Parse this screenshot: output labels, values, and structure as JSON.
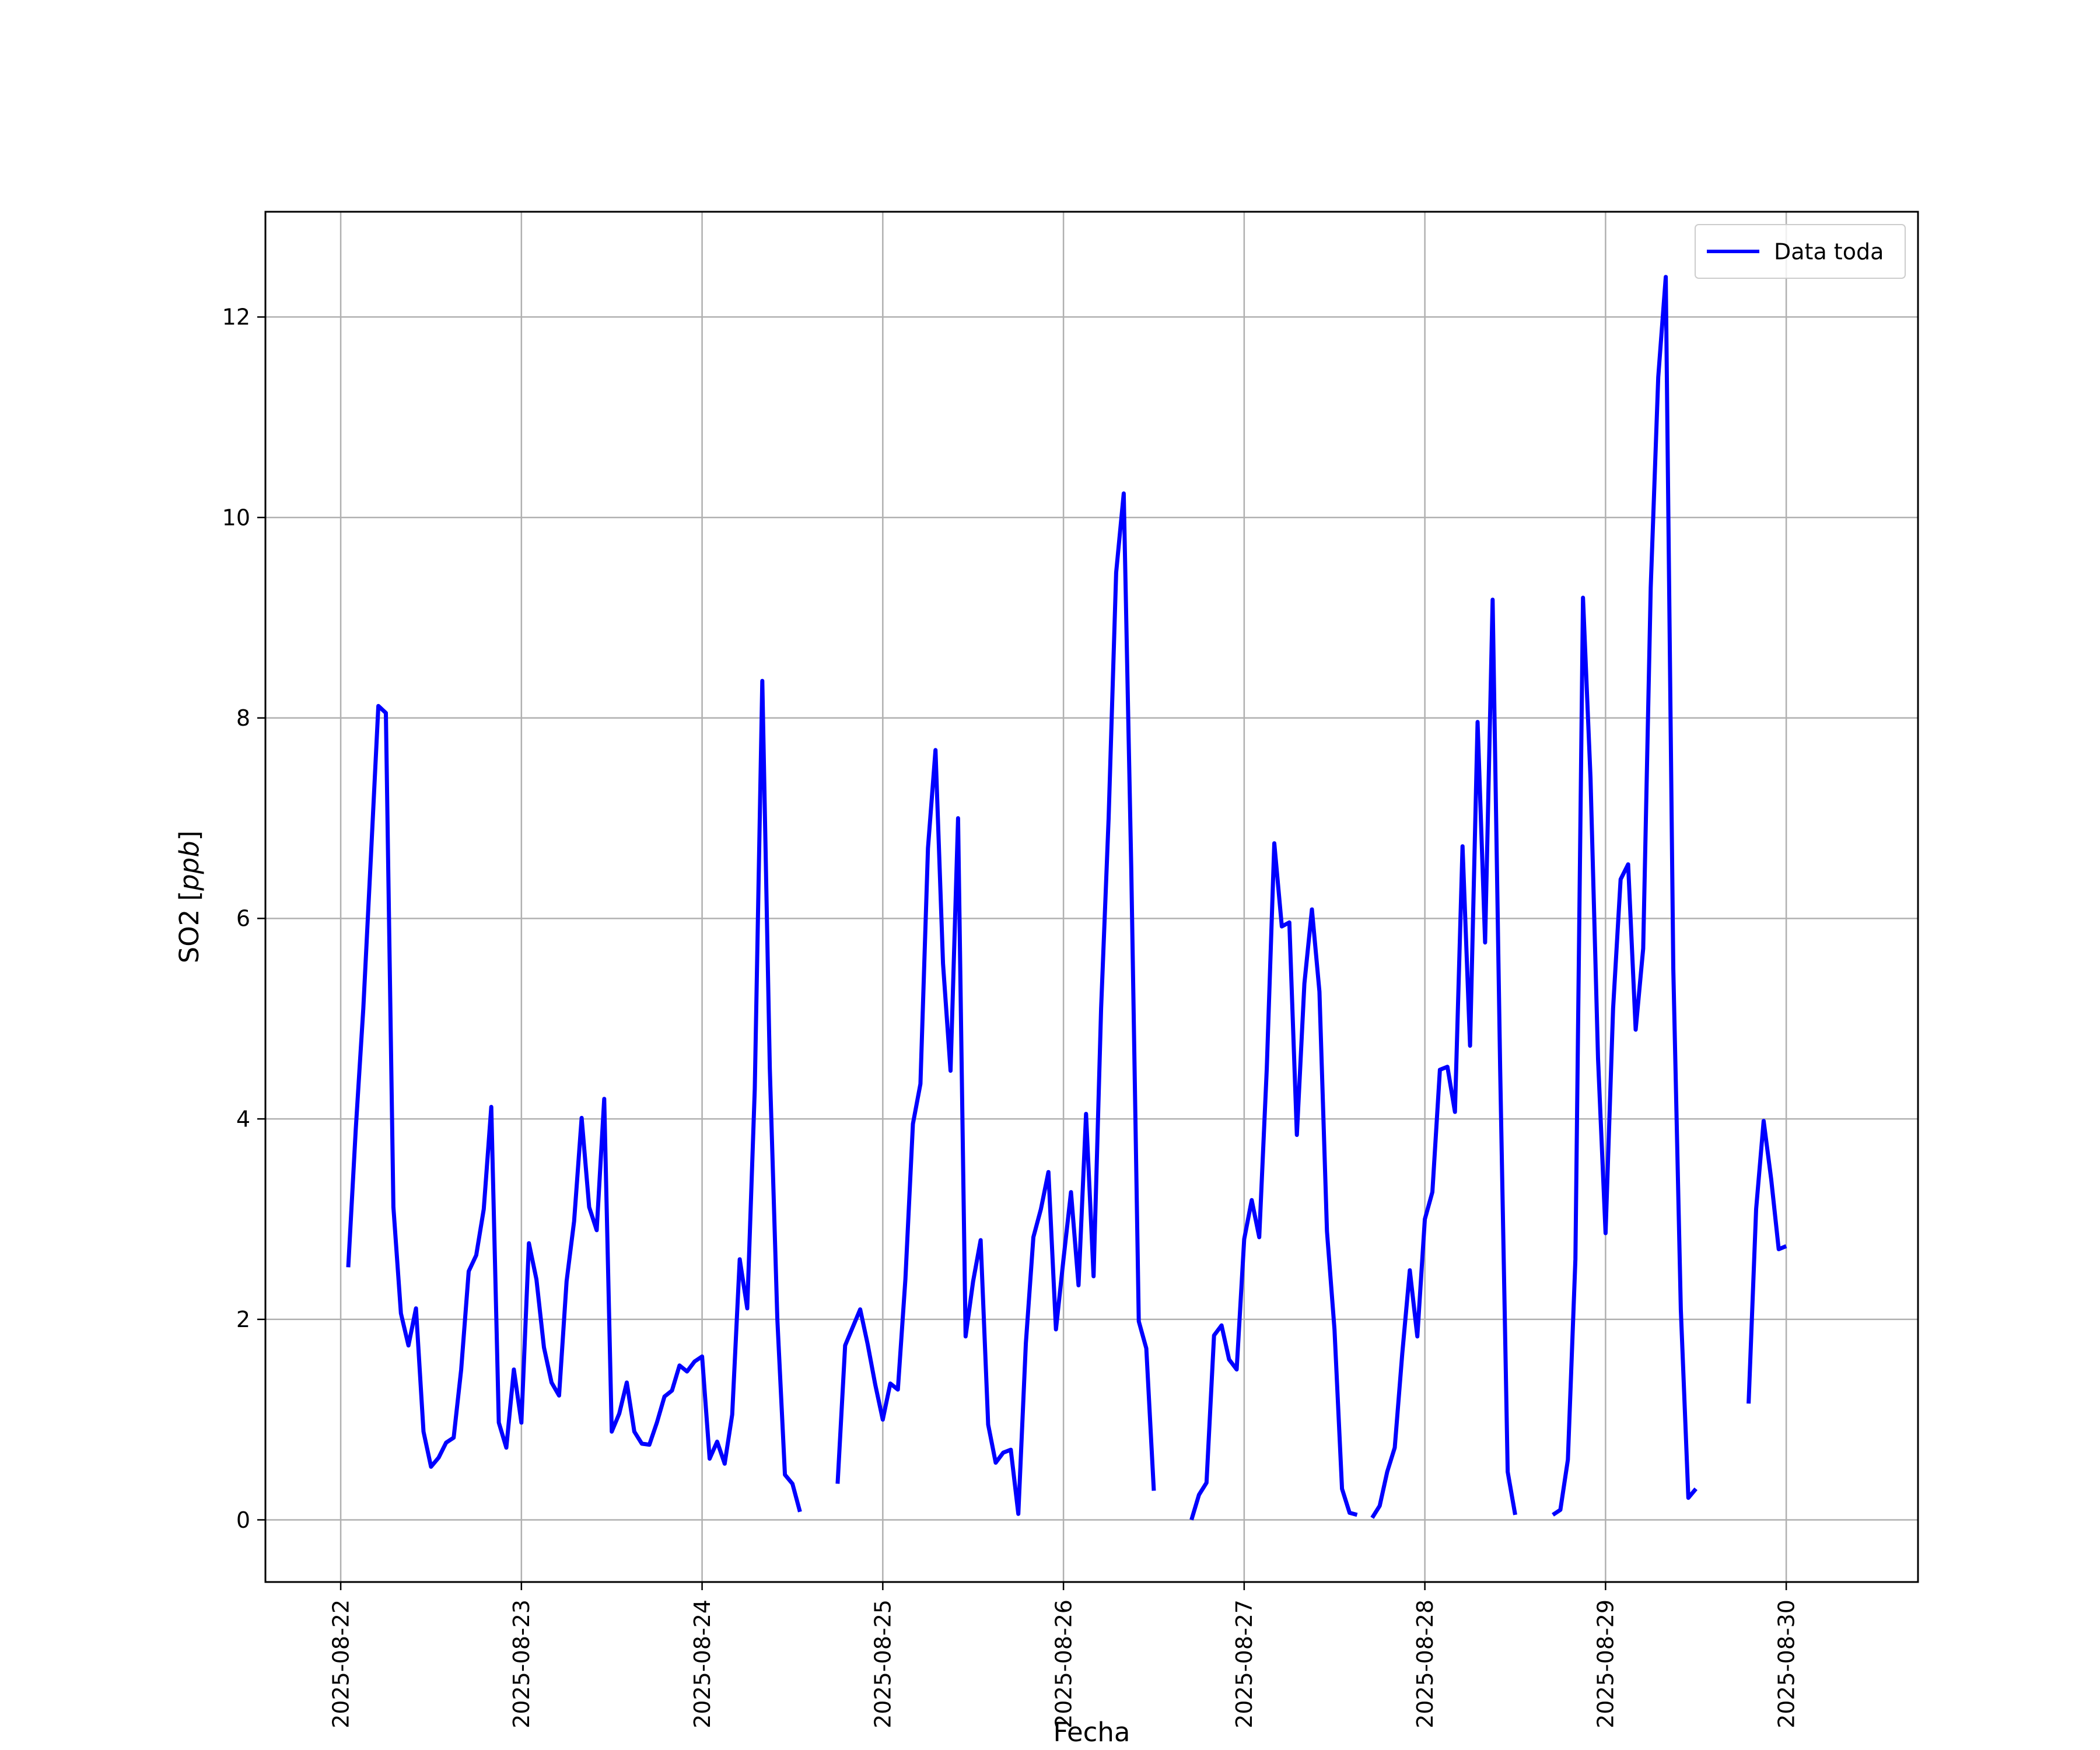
{
  "chart_data": {
    "type": "line",
    "title": "",
    "xlabel": "Fecha",
    "ylabel": "SO2 [ppb]",
    "ylabel_parts": {
      "plain": "SO2 [",
      "italic": "ppb",
      "close": "]"
    },
    "x_ticks": [
      "2025-08-22",
      "2025-08-23",
      "2025-08-24",
      "2025-08-25",
      "2025-08-26",
      "2025-08-27",
      "2025-08-28",
      "2025-08-29",
      "2025-08-30"
    ],
    "y_ticks": [
      "0",
      "2",
      "4",
      "6",
      "8",
      "10",
      "12"
    ],
    "xlim": [
      "2025-08-21 14:00",
      "2025-08-30 17:30"
    ],
    "ylim": [
      -0.62,
      13.05
    ],
    "grid": true,
    "legend": "top-right",
    "colors": {
      "series": "#0000ff",
      "grid": "#b0b0b0",
      "axes": "#000000"
    },
    "series": [
      {
        "name": "Data toda",
        "color": "#0000ff",
        "points": [
          [
            "2025-08-22 01:00",
            2.52
          ],
          [
            "2025-08-22 02:00",
            3.9
          ],
          [
            "2025-08-22 03:00",
            5.1
          ],
          [
            "2025-08-22 04:00",
            6.6
          ],
          [
            "2025-08-22 05:00",
            8.12
          ],
          [
            "2025-08-22 06:00",
            8.05
          ],
          [
            "2025-08-22 07:00",
            3.12
          ],
          [
            "2025-08-22 08:00",
            2.06
          ],
          [
            "2025-08-22 09:00",
            1.74
          ],
          [
            "2025-08-22 10:00",
            2.11
          ],
          [
            "2025-08-22 11:00",
            0.88
          ],
          [
            "2025-08-22 12:00",
            0.53
          ],
          [
            "2025-08-22 13:00",
            0.62
          ],
          [
            "2025-08-22 14:00",
            0.77
          ],
          [
            "2025-08-22 15:00",
            0.82
          ],
          [
            "2025-08-22 16:00",
            1.5
          ],
          [
            "2025-08-22 17:00",
            2.48
          ],
          [
            "2025-08-22 18:00",
            2.64
          ],
          [
            "2025-08-22 19:00",
            3.1
          ],
          [
            "2025-08-22 20:00",
            4.12
          ],
          [
            "2025-08-22 21:00",
            0.97
          ],
          [
            "2025-08-22 22:00",
            0.72
          ],
          [
            "2025-08-22 23:00",
            1.5
          ],
          [
            "2025-08-23 00:00",
            0.97
          ],
          [
            "2025-08-23 01:00",
            2.76
          ],
          [
            "2025-08-23 02:00",
            2.4
          ],
          [
            "2025-08-23 03:00",
            1.72
          ],
          [
            "2025-08-23 04:00",
            1.37
          ],
          [
            "2025-08-23 05:00",
            1.24
          ],
          [
            "2025-08-23 06:00",
            2.38
          ],
          [
            "2025-08-23 07:00",
            2.98
          ],
          [
            "2025-08-23 08:00",
            4.01
          ],
          [
            "2025-08-23 09:00",
            3.12
          ],
          [
            "2025-08-23 10:00",
            2.89
          ],
          [
            "2025-08-23 11:00",
            4.2
          ],
          [
            "2025-08-23 12:00",
            0.88
          ],
          [
            "2025-08-23 13:00",
            1.06
          ],
          [
            "2025-08-23 14:00",
            1.37
          ],
          [
            "2025-08-23 15:00",
            0.88
          ],
          [
            "2025-08-23 16:00",
            0.76
          ],
          [
            "2025-08-23 17:00",
            0.75
          ],
          [
            "2025-08-23 18:00",
            0.97
          ],
          [
            "2025-08-23 19:00",
            1.23
          ],
          [
            "2025-08-23 20:00",
            1.29
          ],
          [
            "2025-08-23 21:00",
            1.54
          ],
          [
            "2025-08-23 22:00",
            1.48
          ],
          [
            "2025-08-23 23:00",
            1.58
          ],
          [
            "2025-08-24 00:00",
            1.63
          ],
          [
            "2025-08-24 01:00",
            0.61
          ],
          [
            "2025-08-24 02:00",
            0.78
          ],
          [
            "2025-08-24 03:00",
            0.56
          ],
          [
            "2025-08-24 04:00",
            1.05
          ],
          [
            "2025-08-24 05:00",
            2.6
          ],
          [
            "2025-08-24 06:00",
            2.11
          ],
          [
            "2025-08-24 07:00",
            4.3
          ],
          [
            "2025-08-24 08:00",
            8.37
          ],
          [
            "2025-08-24 09:00",
            4.5
          ],
          [
            "2025-08-24 10:00",
            2.0
          ],
          [
            "2025-08-24 11:00",
            0.45
          ],
          [
            "2025-08-24 12:00",
            0.36
          ],
          [
            "2025-08-24 13:00",
            0.08
          ],
          null,
          [
            "2025-08-24 18:00",
            0.36
          ],
          [
            "2025-08-24 19:00",
            1.74
          ],
          [
            "2025-08-24 20:00",
            1.92
          ],
          [
            "2025-08-24 21:00",
            2.1
          ],
          [
            "2025-08-24 22:00",
            1.75
          ],
          [
            "2025-08-24 23:00",
            1.35
          ],
          [
            "2025-08-25 00:00",
            1.0
          ],
          [
            "2025-08-25 01:00",
            1.36
          ],
          [
            "2025-08-25 02:00",
            1.3
          ],
          [
            "2025-08-25 03:00",
            2.4
          ],
          [
            "2025-08-25 04:00",
            3.95
          ],
          [
            "2025-08-25 05:00",
            4.35
          ],
          [
            "2025-08-25 06:00",
            6.7
          ],
          [
            "2025-08-25 07:00",
            7.68
          ],
          [
            "2025-08-25 08:00",
            5.55
          ],
          [
            "2025-08-25 09:00",
            4.48
          ],
          [
            "2025-08-25 10:00",
            7.0
          ],
          [
            "2025-08-25 11:00",
            1.83
          ],
          [
            "2025-08-25 12:00",
            2.38
          ],
          [
            "2025-08-25 13:00",
            2.79
          ],
          [
            "2025-08-25 14:00",
            0.95
          ],
          [
            "2025-08-25 15:00",
            0.57
          ],
          [
            "2025-08-25 16:00",
            0.67
          ],
          [
            "2025-08-25 17:00",
            0.7
          ],
          [
            "2025-08-25 18:00",
            0.06
          ],
          [
            "2025-08-25 19:00",
            1.76
          ],
          [
            "2025-08-25 20:00",
            2.82
          ],
          [
            "2025-08-25 21:00",
            3.1
          ],
          [
            "2025-08-25 22:00",
            3.47
          ],
          [
            "2025-08-25 23:00",
            1.9
          ],
          [
            "2025-08-26 00:00",
            2.6
          ],
          [
            "2025-08-26 01:00",
            3.27
          ],
          [
            "2025-08-26 02:00",
            2.34
          ],
          [
            "2025-08-26 03:00",
            4.05
          ],
          [
            "2025-08-26 04:00",
            2.43
          ],
          [
            "2025-08-26 05:00",
            5.1
          ],
          [
            "2025-08-26 06:00",
            7.0
          ],
          [
            "2025-08-26 07:00",
            9.45
          ],
          [
            "2025-08-26 08:00",
            10.24
          ],
          [
            "2025-08-26 09:00",
            6.5
          ],
          [
            "2025-08-26 10:00",
            1.98
          ],
          [
            "2025-08-26 11:00",
            1.71
          ],
          [
            "2025-08-26 12:00",
            0.29
          ],
          null,
          [
            "2025-08-26 17:00",
            0.0
          ],
          [
            "2025-08-26 18:00",
            0.25
          ],
          [
            "2025-08-26 19:00",
            0.37
          ],
          [
            "2025-08-26 20:00",
            1.84
          ],
          [
            "2025-08-26 21:00",
            1.94
          ],
          [
            "2025-08-26 22:00",
            1.6
          ],
          [
            "2025-08-26 23:00",
            1.5
          ],
          [
            "2025-08-27 00:00",
            2.8
          ],
          [
            "2025-08-27 01:00",
            3.19
          ],
          [
            "2025-08-27 02:00",
            2.82
          ],
          [
            "2025-08-27 03:00",
            4.5
          ],
          [
            "2025-08-27 04:00",
            6.75
          ],
          [
            "2025-08-27 05:00",
            5.92
          ],
          [
            "2025-08-27 06:00",
            5.96
          ],
          [
            "2025-08-27 07:00",
            3.84
          ],
          [
            "2025-08-27 08:00",
            5.35
          ],
          [
            "2025-08-27 09:00",
            6.09
          ],
          [
            "2025-08-27 10:00",
            5.27
          ],
          [
            "2025-08-27 11:00",
            2.88
          ],
          [
            "2025-08-27 12:00",
            1.9
          ],
          [
            "2025-08-27 13:00",
            0.31
          ],
          [
            "2025-08-27 14:00",
            0.07
          ],
          [
            "2025-08-27 15:00",
            0.05
          ],
          null,
          [
            "2025-08-27 17:00",
            0.02
          ],
          [
            "2025-08-27 18:00",
            0.14
          ],
          [
            "2025-08-27 19:00",
            0.48
          ],
          [
            "2025-08-27 20:00",
            0.72
          ],
          [
            "2025-08-27 21:00",
            1.66
          ],
          [
            "2025-08-27 22:00",
            2.49
          ],
          [
            "2025-08-27 23:00",
            1.83
          ],
          [
            "2025-08-28 00:00",
            3.0
          ],
          [
            "2025-08-28 01:00",
            3.27
          ],
          [
            "2025-08-28 02:00",
            4.49
          ],
          [
            "2025-08-28 03:00",
            4.52
          ],
          [
            "2025-08-28 04:00",
            4.07
          ],
          [
            "2025-08-28 05:00",
            6.72
          ],
          [
            "2025-08-28 06:00",
            4.73
          ],
          [
            "2025-08-28 07:00",
            7.96
          ],
          [
            "2025-08-28 08:00",
            5.76
          ],
          [
            "2025-08-28 09:00",
            9.18
          ],
          [
            "2025-08-28 10:00",
            4.5
          ],
          [
            "2025-08-28 11:00",
            0.48
          ],
          [
            "2025-08-28 12:00",
            0.05
          ],
          null,
          [
            "2025-08-28 17:00",
            0.05
          ],
          [
            "2025-08-28 18:00",
            0.1
          ],
          [
            "2025-08-28 19:00",
            0.6
          ],
          [
            "2025-08-28 20:00",
            2.6
          ],
          [
            "2025-08-28 21:00",
            9.2
          ],
          [
            "2025-08-28 22:00",
            7.4
          ],
          [
            "2025-08-28 23:00",
            4.6
          ],
          [
            "2025-08-29 00:00",
            2.86
          ],
          [
            "2025-08-29 01:00",
            5.1
          ],
          [
            "2025-08-29 02:00",
            6.39
          ],
          [
            "2025-08-29 03:00",
            6.54
          ],
          [
            "2025-08-29 04:00",
            4.89
          ],
          [
            "2025-08-29 05:00",
            5.7
          ],
          [
            "2025-08-29 06:00",
            9.3
          ],
          [
            "2025-08-29 07:00",
            11.4
          ],
          [
            "2025-08-29 08:00",
            12.4
          ],
          [
            "2025-08-29 09:00",
            5.5
          ],
          [
            "2025-08-29 10:00",
            2.1
          ],
          [
            "2025-08-29 11:00",
            0.22
          ],
          [
            "2025-08-29 12:00",
            0.31
          ],
          null,
          [
            "2025-08-29 19:00",
            1.16
          ],
          [
            "2025-08-29 20:00",
            3.1
          ],
          [
            "2025-08-29 21:00",
            3.98
          ],
          [
            "2025-08-29 22:00",
            3.4
          ],
          [
            "2025-08-29 23:00",
            2.7
          ],
          [
            "2025-08-30 00:00",
            2.73
          ]
        ]
      }
    ]
  }
}
